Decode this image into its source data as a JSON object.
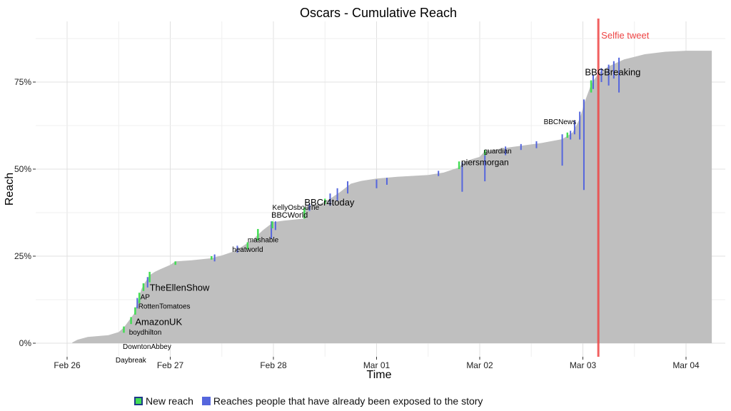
{
  "chart_data": {
    "type": "area",
    "title": "Oscars - Cumulative Reach",
    "xlabel": "Time",
    "ylabel": "Reach",
    "x_ticks": [
      "Feb 26",
      "Feb 27",
      "Feb 28",
      "Mar 01",
      "Mar 02",
      "Mar 03",
      "Mar 04"
    ],
    "x_tick_values": [
      0,
      1,
      2,
      3,
      4,
      5,
      6
    ],
    "xlim": [
      -0.28,
      6.3
    ],
    "y_ticks": [
      "0%",
      "25%",
      "50%",
      "75%"
    ],
    "y_tick_values": [
      0,
      25,
      50,
      75
    ],
    "ylim": [
      0,
      94
    ],
    "grid": true,
    "series": [
      {
        "name": "Cumulative reach",
        "color": "#bfbfbf",
        "points": [
          [
            0.05,
            0.2
          ],
          [
            0.1,
            1
          ],
          [
            0.2,
            1.8
          ],
          [
            0.4,
            2.3
          ],
          [
            0.5,
            3.2
          ],
          [
            0.55,
            4.5
          ],
          [
            0.6,
            6.5
          ],
          [
            0.65,
            8.5
          ],
          [
            0.67,
            10.5
          ],
          [
            0.7,
            13.5
          ],
          [
            0.72,
            15.5
          ],
          [
            0.75,
            17.2
          ],
          [
            0.8,
            19.5
          ],
          [
            0.85,
            20.5
          ],
          [
            0.9,
            21.2
          ],
          [
            1.0,
            22.5
          ],
          [
            1.05,
            23.5
          ],
          [
            1.2,
            23.8
          ],
          [
            1.4,
            24.4
          ],
          [
            1.5,
            25.2
          ],
          [
            1.6,
            26.2
          ],
          [
            1.7,
            27.8
          ],
          [
            1.8,
            29.8
          ],
          [
            1.9,
            32.5
          ],
          [
            2.0,
            34.8
          ],
          [
            2.1,
            35.2
          ],
          [
            2.3,
            35.8
          ],
          [
            2.31,
            39
          ],
          [
            2.45,
            40
          ],
          [
            2.55,
            41.5
          ],
          [
            2.65,
            43.5
          ],
          [
            2.75,
            45.8
          ],
          [
            2.85,
            46.6
          ],
          [
            3.0,
            47.3
          ],
          [
            3.2,
            47.8
          ],
          [
            3.5,
            48.3
          ],
          [
            3.65,
            49
          ],
          [
            3.8,
            50.5
          ],
          [
            3.85,
            52.2
          ],
          [
            4.0,
            53.5
          ],
          [
            4.05,
            55.2
          ],
          [
            4.3,
            56.3
          ],
          [
            4.6,
            57.5
          ],
          [
            4.8,
            58.6
          ],
          [
            4.9,
            60.5
          ],
          [
            4.97,
            64.5
          ],
          [
            5.02,
            69.5
          ],
          [
            5.08,
            74.3
          ],
          [
            5.15,
            77.5
          ],
          [
            5.25,
            79.5
          ],
          [
            5.4,
            81.5
          ],
          [
            5.6,
            83
          ],
          [
            5.8,
            83.7
          ],
          [
            6.0,
            84
          ],
          [
            6.25,
            84
          ]
        ]
      },
      {
        "name": "New reach",
        "color": "#44dd55",
        "segments": [
          [
            0.55,
            3,
            4.8
          ],
          [
            0.62,
            5.5,
            7.5
          ],
          [
            0.66,
            8.2,
            10.3
          ],
          [
            0.7,
            11.5,
            14.5
          ],
          [
            0.74,
            15,
            17.2
          ],
          [
            0.8,
            17.5,
            20.5
          ],
          [
            1.05,
            22.5,
            23.5
          ],
          [
            1.4,
            24,
            25
          ],
          [
            1.75,
            27,
            29
          ],
          [
            1.85,
            29.5,
            32.8
          ],
          [
            1.99,
            33,
            35
          ],
          [
            2.3,
            35.8,
            39
          ],
          [
            2.5,
            40,
            41.5
          ],
          [
            3.8,
            50,
            52.2
          ],
          [
            4.05,
            54,
            55.5
          ],
          [
            4.85,
            59,
            60.5
          ],
          [
            5.08,
            72,
            75.5
          ]
        ]
      },
      {
        "name": "Reaches people that have already been exposed to the story",
        "color": "#5566dd",
        "segments": [
          [
            0.68,
            10,
            13
          ],
          [
            0.78,
            16,
            19
          ],
          [
            1.43,
            23.5,
            25.5
          ],
          [
            1.65,
            26,
            28
          ],
          [
            1.98,
            30,
            35
          ],
          [
            2.02,
            32.5,
            35
          ],
          [
            2.35,
            38,
            40
          ],
          [
            2.55,
            39.5,
            43
          ],
          [
            2.62,
            41,
            44.5
          ],
          [
            2.72,
            43,
            46.5
          ],
          [
            3.0,
            44.5,
            47
          ],
          [
            3.1,
            45.5,
            47.5
          ],
          [
            3.6,
            48,
            49.5
          ],
          [
            3.83,
            43.5,
            52
          ],
          [
            4.05,
            46.5,
            55.5
          ],
          [
            4.25,
            54,
            56.5
          ],
          [
            4.4,
            55.5,
            57.2
          ],
          [
            4.55,
            56,
            58
          ],
          [
            4.8,
            51,
            60
          ],
          [
            4.88,
            58.5,
            61
          ],
          [
            4.92,
            60,
            64
          ],
          [
            4.97,
            58.5,
            66.5
          ],
          [
            5.01,
            44,
            70
          ],
          [
            5.1,
            73,
            77
          ],
          [
            5.18,
            75,
            79
          ],
          [
            5.25,
            74,
            80
          ],
          [
            5.3,
            76,
            81
          ],
          [
            5.35,
            72,
            82
          ]
        ]
      }
    ],
    "annotations": [
      {
        "label": "Daybreak",
        "x": 0.47,
        "y": 4.7,
        "size": 10
      },
      {
        "label": "DowntonAbbey",
        "x": 0.54,
        "y": 8.6,
        "size": 10
      },
      {
        "label": "boydhilton",
        "x": 0.6,
        "y": 12.7,
        "size": 10
      },
      {
        "label": "AmazonUK",
        "x": 0.66,
        "y": 15.5,
        "size": 13
      },
      {
        "label": "RottenTomatoes",
        "x": 0.69,
        "y": 20.2,
        "size": 10
      },
      {
        "label": "AP",
        "x": 0.71,
        "y": 22.8,
        "size": 10
      },
      {
        "label": "TheEllenShow",
        "x": 0.8,
        "y": 25.3,
        "size": 13
      },
      {
        "label": "heatworld",
        "x": 1.6,
        "y": 36.5,
        "size": 10
      },
      {
        "label": "mashable",
        "x": 1.75,
        "y": 39.2,
        "size": 10
      },
      {
        "label": "BBCWorld",
        "x": 1.98,
        "y": 46.3,
        "size": 11
      },
      {
        "label": "KellyOsbourne",
        "x": 1.99,
        "y": 48.6,
        "size": 10
      },
      {
        "label": "BBCr4today",
        "x": 2.3,
        "y": 49.8,
        "size": 13
      },
      {
        "label": "piersmorgan",
        "x": 3.82,
        "y": 61.4,
        "size": 12
      },
      {
        "label": "guardian",
        "x": 4.04,
        "y": 64.8,
        "size": 10
      },
      {
        "label": "BBCNews",
        "x": 4.62,
        "y": 73.2,
        "size": 10
      },
      {
        "label": "BBCBreaking",
        "x": 5.02,
        "y": 87.2,
        "size": 13
      }
    ],
    "vline": {
      "x": 5.15,
      "label": "Selfie tweet",
      "color": "#ee4444"
    },
    "legend_position": "bottom"
  },
  "legend": {
    "new_reach": "New reach",
    "repeat_reach": "Reaches people that have already been exposed to the story"
  },
  "colors": {
    "new_reach": "#44dd55",
    "repeat_reach": "#5566dd",
    "area": "#bfbfbf",
    "selfie_line": "#ee4444"
  }
}
